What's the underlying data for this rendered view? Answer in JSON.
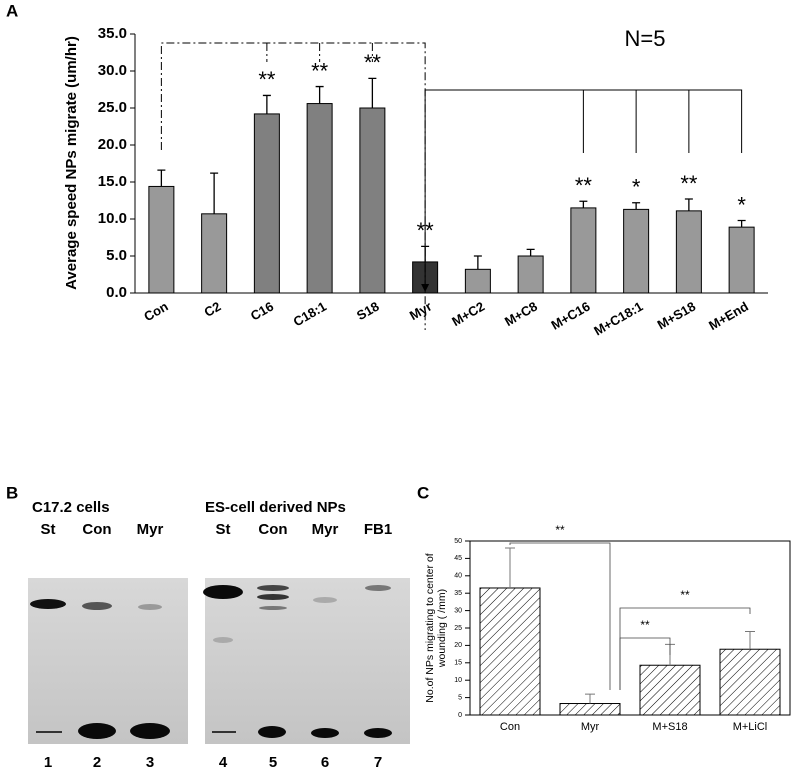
{
  "chart_data": [
    {
      "type": "bar",
      "panel": "A",
      "annotation": "N=5",
      "y_label": "Average speed NPs migrate (um/hr)",
      "categories": [
        "Con",
        "C2",
        "C16",
        "C18:1",
        "S18",
        "Myr",
        "M+C2",
        "M+C8",
        "M+C16",
        "M+C18:1",
        "M+S18",
        "M+End"
      ],
      "values": [
        14.4,
        10.7,
        24.2,
        25.6,
        25.0,
        4.2,
        3.2,
        5.0,
        11.5,
        11.3,
        11.1,
        8.9
      ],
      "errors": [
        2.2,
        5.5,
        2.5,
        2.3,
        4.0,
        2.1,
        1.8,
        0.9,
        0.9,
        0.9,
        1.6,
        0.9
      ],
      "significance": [
        null,
        null,
        "**",
        "**",
        "**",
        "**",
        null,
        null,
        "**",
        "*",
        "**",
        "*"
      ],
      "colors": [
        "#999999",
        "#999999",
        "#808080",
        "#808080",
        "#808080",
        "#333333",
        "#999999",
        "#999999",
        "#999999",
        "#999999",
        "#999999",
        "#999999"
      ],
      "ylim": [
        0,
        35
      ],
      "yticks": [
        {
          "value": 0,
          "label": "0.0"
        },
        {
          "value": 5,
          "label": "5.0"
        },
        {
          "value": 10,
          "label": "10.0"
        },
        {
          "value": 15,
          "label": "15.0"
        },
        {
          "value": 20,
          "label": "20.0"
        },
        {
          "value": 25,
          "label": "25.0"
        },
        {
          "value": 30,
          "label": "30.0"
        },
        {
          "value": 35,
          "label": "35.0"
        }
      ]
    },
    {
      "type": "bar",
      "panel": "C",
      "hatch": true,
      "color": "#ffffff",
      "y_label": [
        "No.of NPs migrating to center of",
        "wounding ( /mm)"
      ],
      "categories": [
        "Con",
        "Myr",
        "M+S18",
        "M+LiCl"
      ],
      "values": [
        36.5,
        3.3,
        14.3,
        18.9
      ],
      "errors": [
        11.5,
        2.7,
        6.0,
        5.1
      ],
      "bracket_labels": [
        "**",
        "**",
        "**"
      ],
      "ylim": [
        0,
        50
      ],
      "yticks": [
        0,
        5,
        10,
        15,
        20,
        25,
        30,
        35,
        40,
        45,
        50
      ]
    }
  ],
  "gel": {
    "panel": "B",
    "groups": [
      {
        "title": "C17.2 cells",
        "lanes": [
          "St",
          "Con",
          "Myr"
        ],
        "numbers": [
          "1",
          "2",
          "3"
        ]
      },
      {
        "title": "ES-cell derived NPs",
        "lanes": [
          "St",
          "Con",
          "Myr",
          "FB1"
        ],
        "numbers": [
          "4",
          "5",
          "6",
          "7"
        ]
      }
    ]
  }
}
